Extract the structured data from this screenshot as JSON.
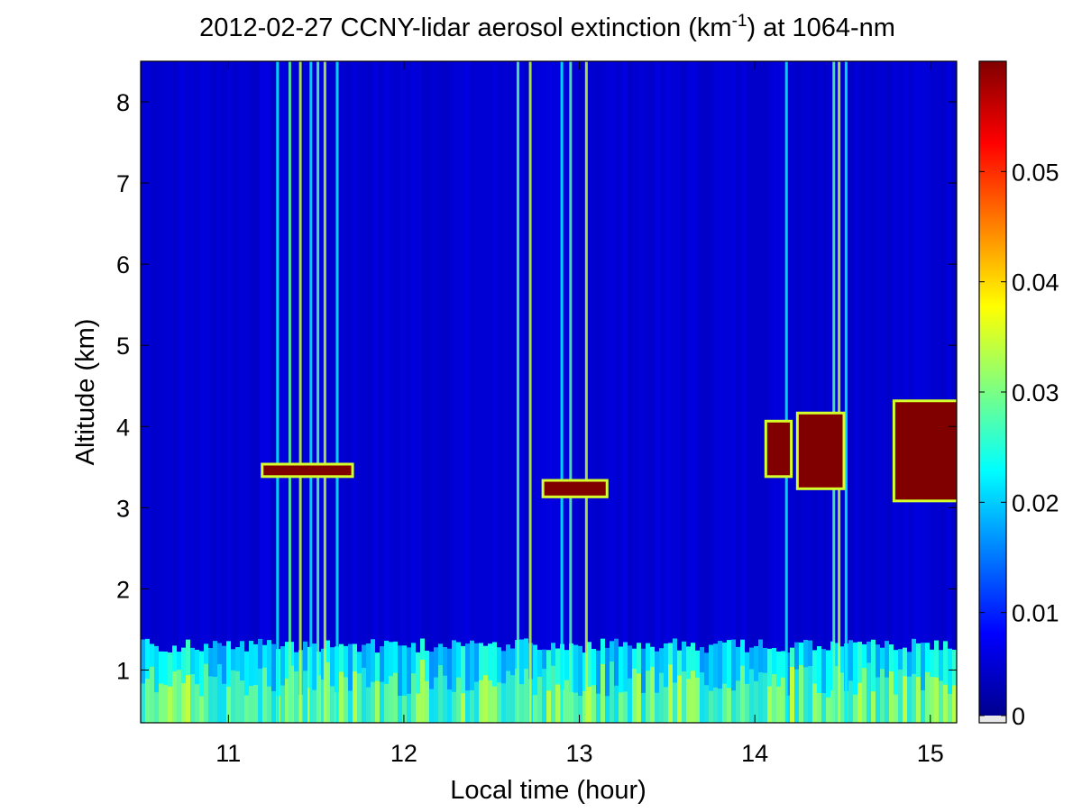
{
  "chart_data": {
    "type": "heatmap",
    "title": {
      "prefix": "2012-02-27 CCNY-lidar aerosol extinction (km",
      "superscript": "-1",
      "suffix": ") at 1064-nm"
    },
    "xlabel": "Local time (hour)",
    "ylabel": "Altitude (km)",
    "xlim": [
      10.5,
      15.15
    ],
    "ylim": [
      0.35,
      8.5
    ],
    "xticks": [
      "11",
      "12",
      "13",
      "14",
      "15"
    ],
    "yticks": [
      "1",
      "2",
      "3",
      "4",
      "5",
      "6",
      "7",
      "8"
    ],
    "colorbar": {
      "colormap": "jet",
      "range": [
        0,
        0.06
      ],
      "ticks": [
        "0",
        "0.01",
        "0.02",
        "0.03",
        "0.04",
        "0.05"
      ]
    },
    "background_value": 0.005,
    "features": {
      "boundary_layer": {
        "top_km": 1.3,
        "value": 0.02
      },
      "elevated_cloud_layers": [
        {
          "x0": 11.2,
          "x1": 11.7,
          "y0": 3.4,
          "y1": 3.52,
          "value": 0.06
        },
        {
          "x0": 12.8,
          "x1": 13.15,
          "y0": 3.15,
          "y1": 3.32,
          "value": 0.06
        },
        {
          "x0": 14.07,
          "x1": 14.2,
          "y0": 3.4,
          "y1": 4.05,
          "value": 0.06
        },
        {
          "x0": 14.25,
          "x1": 14.5,
          "y0": 3.25,
          "y1": 4.15,
          "value": 0.06
        },
        {
          "x0": 14.8,
          "x1": 15.15,
          "y0": 3.1,
          "y1": 4.3,
          "value": 0.06
        }
      ],
      "vertical_streaks": [
        11.28,
        11.35,
        11.41,
        11.47,
        11.51,
        11.55,
        11.62,
        12.65,
        12.72,
        12.9,
        12.95,
        13.04,
        14.18,
        14.45,
        14.48,
        14.52
      ]
    }
  }
}
